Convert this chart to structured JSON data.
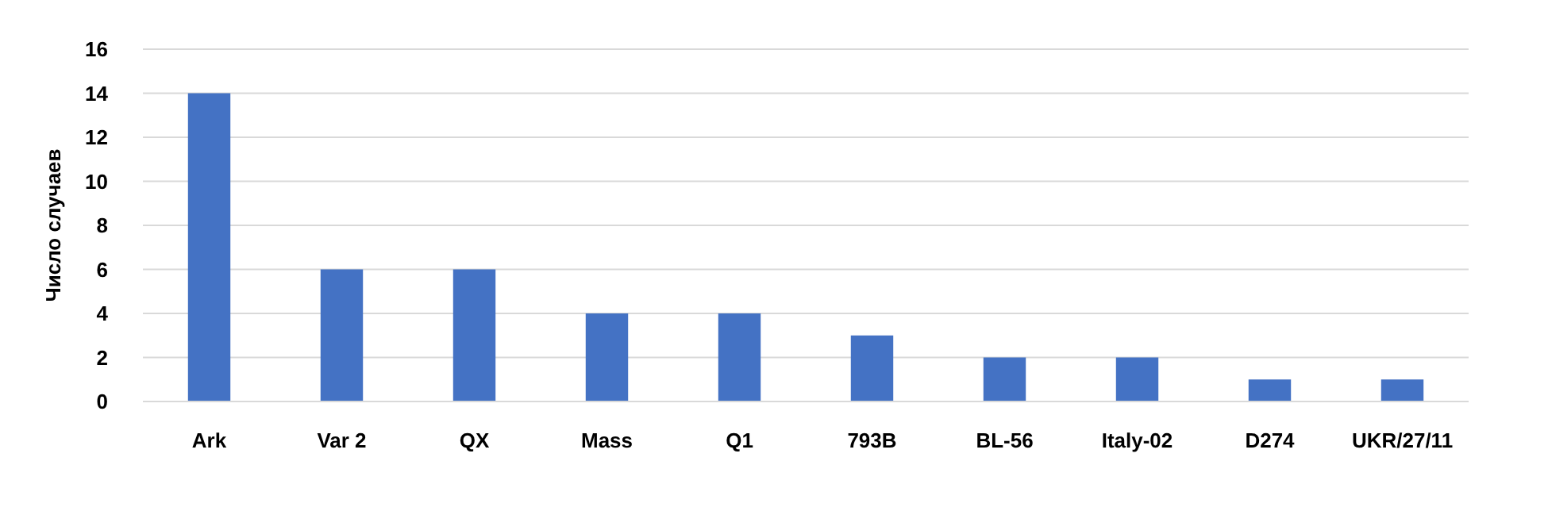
{
  "chart_data": {
    "type": "bar",
    "ylabel": "Число случаев",
    "categories": [
      "Ark",
      "Var 2",
      "QX",
      "Mass",
      "Q1",
      "793B",
      "BL-56",
      "Italy-02",
      "D274",
      "UKR/27/11"
    ],
    "values": [
      14,
      6,
      6,
      4,
      4,
      3,
      2,
      2,
      1,
      1
    ],
    "color": "#4472c4",
    "ylim": [
      0,
      16
    ],
    "yticks": [
      0,
      2,
      4,
      6,
      8,
      10,
      12,
      14,
      16
    ],
    "grid": "y"
  }
}
